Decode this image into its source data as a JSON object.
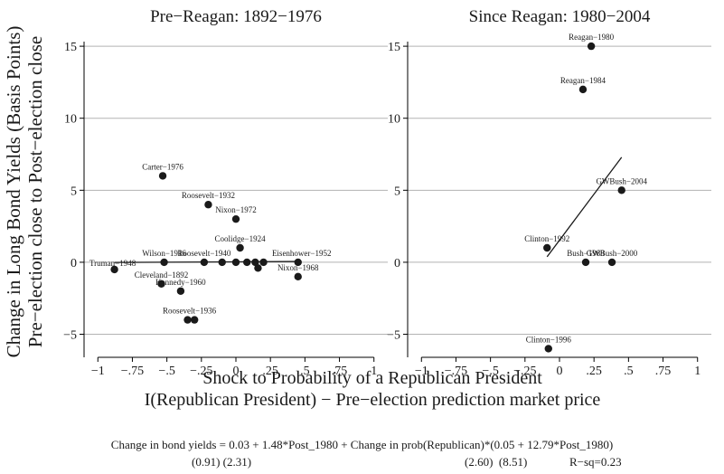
{
  "ylabel_line1": "Change in Long Bond Yields (Basis Points)",
  "ylabel_line2": "Pre−election close to Post−election close",
  "xlabel_line1": "Shock to Probability of a Republican President",
  "xlabel_line2": "I(Republican President) − Pre−election prediction market price",
  "equation_line": "Change in bond yields = 0.03 + 1.48*Post_1980 + Change in prob(Republican)*(0.05 + 12.79*Post_1980)",
  "se_left": "(0.91) (2.31)",
  "se_right": "(2.60)  (8.51)",
  "rsq": "R−sq=0.23",
  "chart_data": [
    {
      "type": "scatter",
      "title": "Pre−Reagan: 1892−1976",
      "xlim": [
        -1.1,
        1.1
      ],
      "ylim": [
        -6.6,
        16.2
      ],
      "xticks": [
        -1,
        -0.75,
        -0.5,
        -0.25,
        0,
        0.25,
        0.5,
        0.75,
        1
      ],
      "xtick_labels": [
        "−1",
        "−.75",
        "−.5",
        "−.25",
        "0",
        ".25",
        ".5",
        ".75",
        "1"
      ],
      "yticks": [
        -5,
        0,
        5,
        10,
        15
      ],
      "ytick_labels": [
        "−5",
        "0",
        "5",
        "10",
        "15"
      ],
      "grid": "horizontal",
      "points": [
        {
          "label": "Carter−1976",
          "x": -0.53,
          "y": 6.0
        },
        {
          "label": "Roosevelt−1932",
          "x": -0.2,
          "y": 4.0
        },
        {
          "label": "Nixon−1972",
          "x": 0.0,
          "y": 3.0
        },
        {
          "label": "Coolidge−1924",
          "x": 0.03,
          "y": 1.0
        },
        {
          "label": "Truman−1948",
          "x": -0.88,
          "y": -0.5
        },
        {
          "label": "Wilson−1916",
          "x": -0.52,
          "y": 0.0
        },
        {
          "label": "Roosevelt−1940",
          "x": -0.23,
          "y": 0.0
        },
        {
          "label": "",
          "x": -0.1,
          "y": 0.0
        },
        {
          "label": "",
          "x": 0.0,
          "y": 0.0
        },
        {
          "label": "",
          "x": 0.08,
          "y": 0.0
        },
        {
          "label": "",
          "x": 0.14,
          "y": 0.0
        },
        {
          "label": "",
          "x": 0.2,
          "y": 0.0
        },
        {
          "label": "",
          "x": 0.16,
          "y": -0.4
        },
        {
          "label": "Eisenhower−1952",
          "x": 0.45,
          "y": 0.0
        },
        {
          "label": "Nixon−1968",
          "x": 0.45,
          "y": -1.0
        },
        {
          "label": "Cleveland−1892",
          "x": -0.54,
          "y": -1.5
        },
        {
          "label": "Kennedy−1960",
          "x": -0.4,
          "y": -2.0
        },
        {
          "label": "Roosevelt−1936",
          "x": -0.35,
          "y": -4.0
        },
        {
          "label": "",
          "x": -0.3,
          "y": -4.0
        }
      ],
      "fit_line": {
        "x": [
          -0.88,
          0.45
        ],
        "y": [
          -0.014,
          0.053
        ]
      }
    },
    {
      "type": "scatter",
      "title": "Since Reagan: 1980−2004",
      "xlim": [
        -1.1,
        1.1
      ],
      "ylim": [
        -6.6,
        16.2
      ],
      "xticks": [
        -1,
        -0.75,
        -0.5,
        -0.25,
        0,
        0.25,
        0.5,
        0.75,
        1
      ],
      "xtick_labels": [
        "−1",
        "−.75",
        "−.5",
        "−.25",
        "0",
        ".25",
        ".5",
        ".75",
        "1"
      ],
      "yticks": [
        -5,
        0,
        5,
        10,
        15
      ],
      "ytick_labels": [
        "−5",
        "0",
        "5",
        "10",
        "15"
      ],
      "grid": "horizontal",
      "points": [
        {
          "label": "Reagan−1980",
          "x": 0.23,
          "y": 15.0
        },
        {
          "label": "Reagan−1984",
          "x": 0.17,
          "y": 12.0
        },
        {
          "label": "GWBush−2004",
          "x": 0.45,
          "y": 5.0
        },
        {
          "label": "Clinton−1992",
          "x": -0.09,
          "y": 1.0
        },
        {
          "label": "Bush−1988",
          "x": 0.19,
          "y": 0.0
        },
        {
          "label": "GWBush−2000",
          "x": 0.38,
          "y": 0.0
        },
        {
          "label": "Clinton−1996",
          "x": -0.08,
          "y": -6.0
        }
      ],
      "fit_line": {
        "x": [
          -0.09,
          0.45
        ],
        "y": [
          0.38,
          7.29
        ]
      }
    }
  ]
}
